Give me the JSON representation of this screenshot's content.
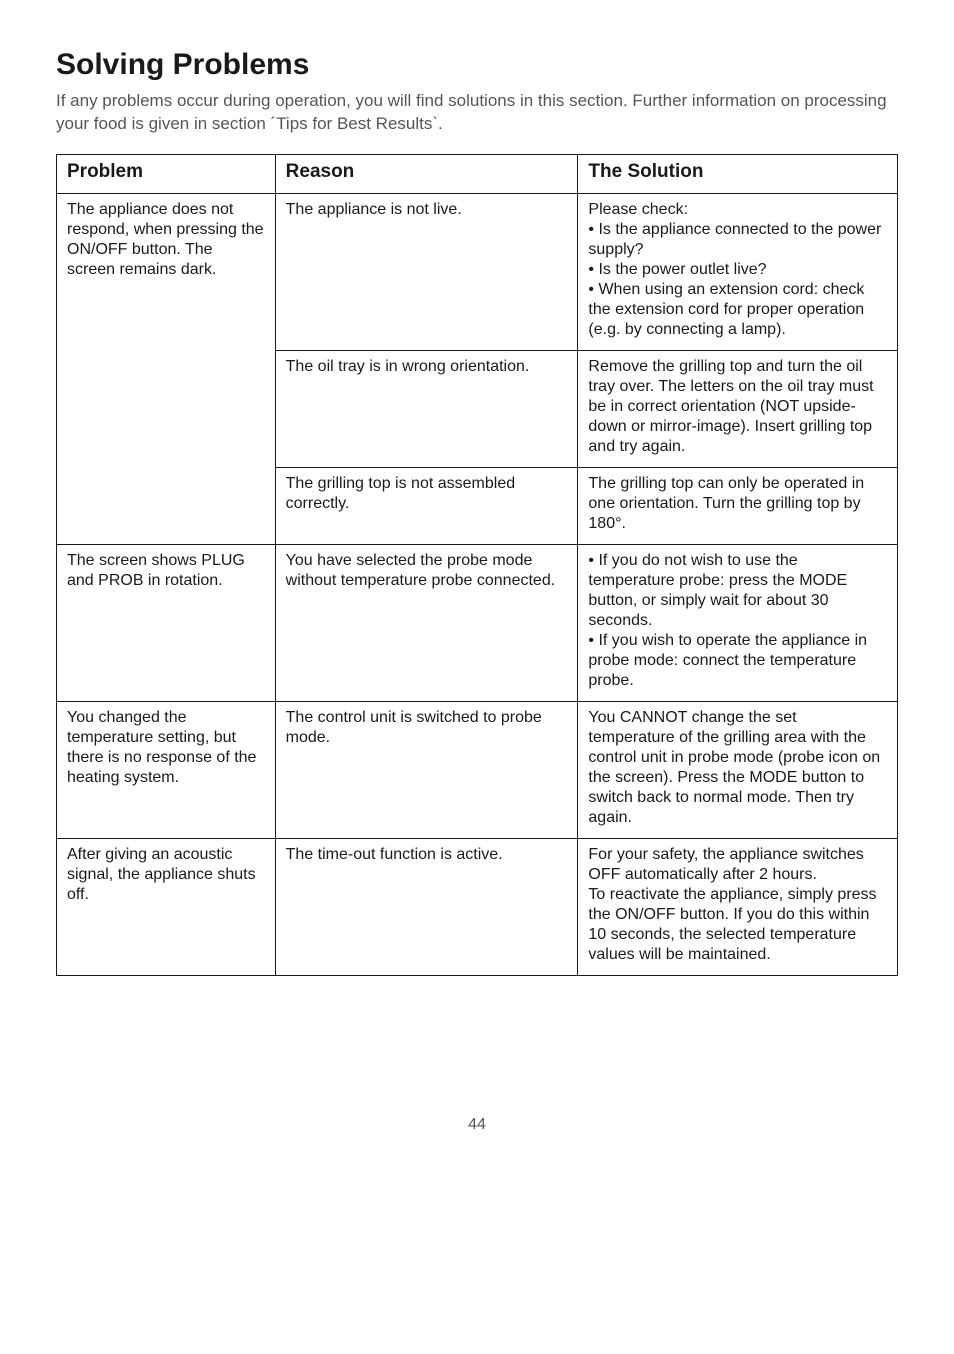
{
  "title": "Solving Problems",
  "intro": "If any problems occur during operation, you will find solutions in this section. Further information on processing your food is given in section ´Tips for Best Results`.",
  "table": {
    "headers": {
      "problem": "Problem",
      "reason": "Reason",
      "solution": "The Solution"
    },
    "rows": [
      {
        "problem": "The appliance does not respond, when pressing the ON/OFF button. The screen remains dark.",
        "reason": "The appliance is not live.",
        "solution": "Please check:\n• Is the appliance connected to the power supply?\n• Is the power outlet live?\n• When using an extension cord: check the extension cord for proper operation (e.g. by connecting a lamp).",
        "problem_rowspan": 3
      },
      {
        "reason": "The oil tray is in wrong orientation.",
        "solution": "Remove the grilling top and turn the oil tray over. The letters on the oil tray must be in correct orientation (NOT upside-down or mirror-image). Insert grilling top and try again."
      },
      {
        "reason": "The grilling top is not assembled correctly.",
        "solution": "The grilling top can only be operated in one orientation. Turn the grilling top by 180°."
      },
      {
        "problem": "The screen shows PLUG and PROB in rotation.",
        "reason": "You have selected the probe mode without temperature probe connected.",
        "solution": "• If you do not wish to use the temperature probe: press the MODE button, or simply wait for about 30 seconds.\n• If you wish to operate the appliance in probe mode: connect the temperature probe."
      },
      {
        "problem": "You changed the temperature setting, but there is no response of the heating system.",
        "reason": "The control unit is switched to probe mode.",
        "solution": "You CANNOT change the set temperature of the grilling area with the control unit in probe mode (probe icon on the screen). Press the MODE button to switch back to normal mode. Then try again."
      },
      {
        "problem": "After giving an acoustic signal, the appliance shuts off.",
        "reason": "The time-out function is active.",
        "solution": "For your safety, the appliance switches OFF automatically after 2 hours.\nTo reactivate the appliance, simply press the ON/OFF button. If you do this within 10 seconds, the selected temperature values will be maintained."
      }
    ]
  },
  "page_number": "44"
}
